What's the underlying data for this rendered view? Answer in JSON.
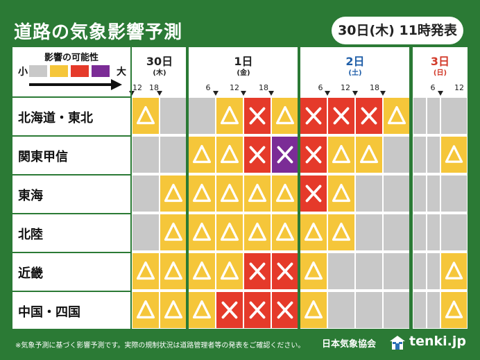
{
  "title": "道路の気象影響予測",
  "issued": "30日(木) 11時発表",
  "legend": {
    "title": "影響の可能性",
    "low": "小",
    "high": "大",
    "levels": [
      {
        "name": "none",
        "color": "#c8c8c8"
      },
      {
        "name": "caution",
        "color": "#f5c63a"
      },
      {
        "name": "warning",
        "color": "#e53a2a"
      },
      {
        "name": "severe",
        "color": "#7b2c96"
      }
    ]
  },
  "days": [
    {
      "day": "30日",
      "dow": "(木)",
      "color": "#222222"
    },
    {
      "day": "1日",
      "dow": "(金)",
      "color": "#222222"
    },
    {
      "day": "2日",
      "dow": "(土)",
      "color": "#1f5ea8"
    },
    {
      "day": "3日",
      "dow": "(日)",
      "color": "#d23a2a"
    }
  ],
  "hour_labels": [
    "12",
    "18",
    "6",
    "12",
    "18",
    "6",
    "12",
    "18",
    "6",
    "12"
  ],
  "regions": [
    "北海道・東北",
    "関東甲信",
    "東海",
    "北陸",
    "近畿",
    "中国・四国"
  ],
  "symbols": {
    "0": "",
    "1": "△",
    "2": "×",
    "3": "×"
  },
  "grid": [
    [
      1,
      0,
      0,
      1,
      2,
      1,
      2,
      2,
      2,
      1,
      0,
      0,
      0
    ],
    [
      0,
      0,
      1,
      1,
      2,
      3,
      2,
      1,
      1,
      0,
      0,
      0,
      1
    ],
    [
      0,
      1,
      1,
      1,
      1,
      1,
      2,
      1,
      0,
      0,
      0,
      0,
      0
    ],
    [
      0,
      1,
      1,
      1,
      1,
      1,
      1,
      1,
      0,
      0,
      0,
      0,
      0
    ],
    [
      1,
      1,
      1,
      1,
      2,
      2,
      1,
      0,
      0,
      0,
      0,
      0,
      1
    ],
    [
      1,
      1,
      1,
      2,
      2,
      2,
      1,
      0,
      0,
      0,
      0,
      0,
      1
    ]
  ],
  "footnote": "※気象予測に基づく影響予測です。実際の規制状況は道路管理者等の発表をご確認ください。",
  "organization": "日本気象協会",
  "brand": "tenki.jp"
}
